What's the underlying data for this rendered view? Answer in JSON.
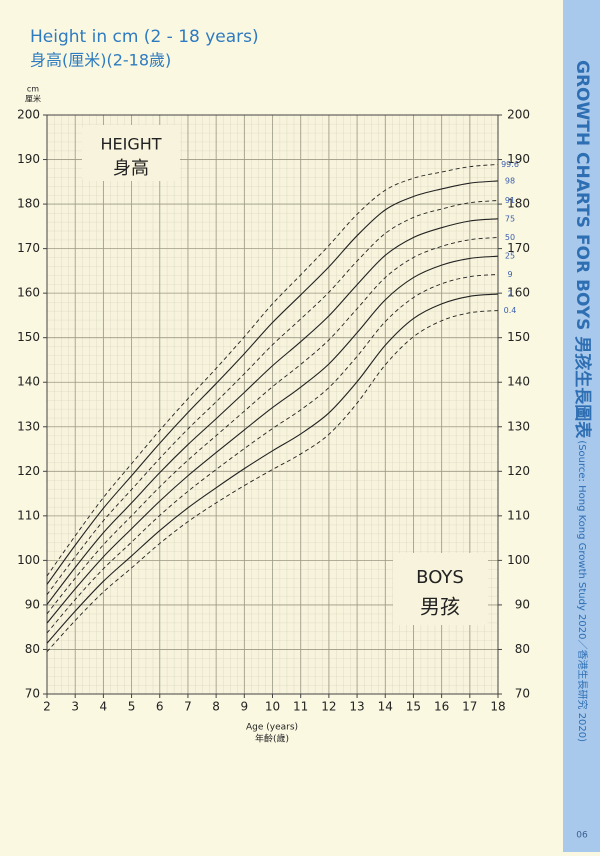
{
  "chart_data": {
    "type": "line",
    "title": "Height in cm (2 - 18 years)",
    "subtitle": "身高(厘米)(2-18歲)",
    "y_unit": "cm",
    "y_unit_zh": "厘米",
    "x_label": "Age (years)",
    "x_label_zh": "年齡(歲)",
    "panel_label": "HEIGHT",
    "panel_label_zh": "身高",
    "group_label": "BOYS",
    "group_label_zh": "男孩",
    "side_title": "GROWTH CHARTS FOR BOYS 男孩生長圖表",
    "side_source": "(Source: Hong Kong Growth Study 2020／香港生長研究 2020)",
    "page_number": "06",
    "x": [
      2,
      3,
      4,
      5,
      6,
      7,
      8,
      9,
      10,
      11,
      12,
      13,
      14,
      15,
      16,
      17,
      18
    ],
    "xlim": [
      2,
      18
    ],
    "xticks": [
      2,
      3,
      4,
      5,
      6,
      7,
      8,
      9,
      10,
      11,
      12,
      13,
      14,
      15,
      16,
      17,
      18
    ],
    "ylim": [
      70,
      200
    ],
    "yticks": [
      70,
      80,
      90,
      100,
      110,
      120,
      130,
      140,
      150,
      160,
      170,
      180,
      190,
      200
    ],
    "grid": true,
    "series": [
      {
        "name": "0.4",
        "color": "#222222",
        "dashed": true,
        "values": [
          79.5,
          86.5,
          92.9,
          98.3,
          103.8,
          108.7,
          112.9,
          116.8,
          120.4,
          123.9,
          128.3,
          135.3,
          143.9,
          150.2,
          153.8,
          155.6,
          156.1
        ]
      },
      {
        "name": "2",
        "color": "#222222",
        "dashed": false,
        "values": [
          81.4,
          88.6,
          95.3,
          101,
          106.7,
          111.8,
          116.3,
          120.6,
          124.6,
          128.4,
          133.1,
          140.1,
          148.3,
          154.3,
          157.6,
          159.3,
          159.8
        ]
      },
      {
        "name": "9",
        "color": "#222222",
        "dashed": true,
        "values": [
          83.7,
          91.2,
          98.1,
          104.1,
          110.1,
          115.5,
          120.4,
          125.1,
          129.6,
          133.8,
          138.8,
          145.8,
          153.6,
          159,
          162.1,
          163.7,
          164.2
        ]
      },
      {
        "name": "25",
        "color": "#222222",
        "dashed": false,
        "values": [
          85.9,
          93.6,
          100.8,
          107.1,
          113.3,
          119,
          124.2,
          129.3,
          134.3,
          138.9,
          144.1,
          151.1,
          158.5,
          163.5,
          166.3,
          167.8,
          168.3
        ]
      },
      {
        "name": "50",
        "color": "#222222",
        "dashed": true,
        "values": [
          88,
          96,
          103.5,
          110,
          116.5,
          122.5,
          128,
          133.5,
          139,
          144,
          149.5,
          156.5,
          163.5,
          168,
          170.5,
          172,
          172.5
        ]
      },
      {
        "name": "75",
        "color": "#222222",
        "dashed": false,
        "values": [
          90.1,
          98.4,
          106.2,
          112.9,
          119.7,
          126,
          131.8,
          137.7,
          143.7,
          149.1,
          154.9,
          161.9,
          168.5,
          172.5,
          174.7,
          176.2,
          176.7
        ]
      },
      {
        "name": "91",
        "color": "#222222",
        "dashed": true,
        "values": [
          92.3,
          100.8,
          108.9,
          115.9,
          122.9,
          129.5,
          135.6,
          141.9,
          148.4,
          154.2,
          160.2,
          167.2,
          173.4,
          177,
          178.9,
          180.3,
          180.8
        ]
      },
      {
        "name": "98",
        "color": "#222222",
        "dashed": false,
        "values": [
          94.6,
          103.4,
          111.7,
          119,
          126.3,
          133.2,
          139.7,
          146.4,
          153.4,
          159.6,
          165.9,
          172.9,
          178.7,
          181.7,
          183.4,
          184.7,
          185.2
        ]
      },
      {
        "name": "99.6",
        "color": "#222222",
        "dashed": true,
        "values": [
          96.5,
          105.5,
          114.1,
          121.7,
          129.2,
          136.3,
          143.1,
          150.2,
          157.6,
          164.1,
          170.7,
          177.7,
          183.1,
          185.8,
          187.2,
          188.4,
          188.9
        ]
      }
    ]
  }
}
